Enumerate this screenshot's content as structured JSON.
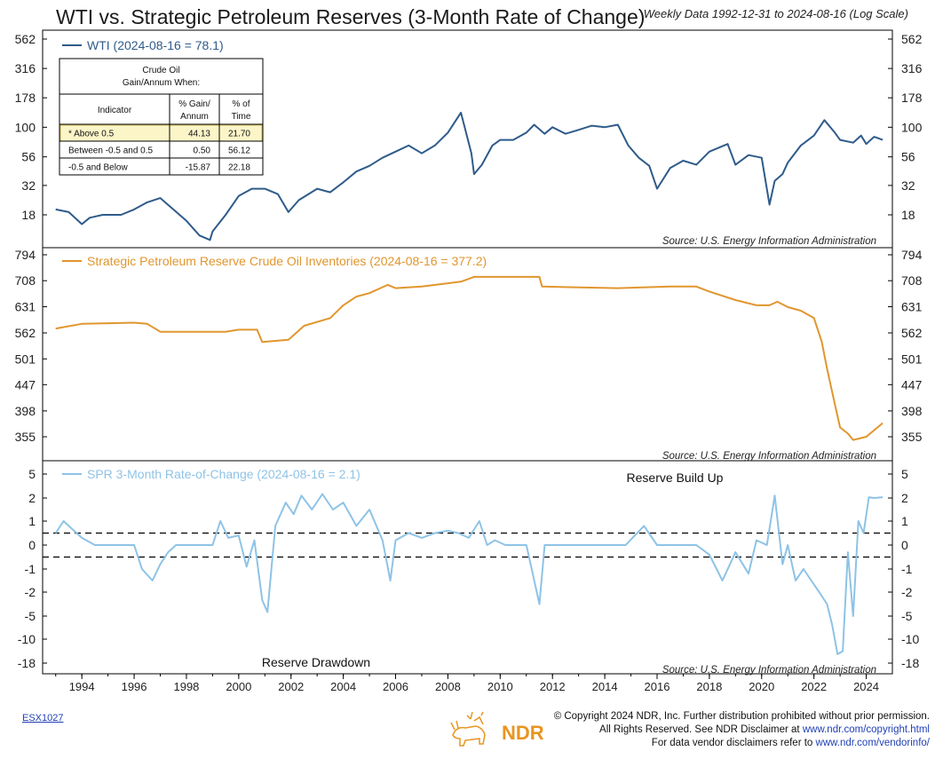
{
  "header": {
    "title": "WTI vs. Strategic Petroleum Reserves (3-Month Rate of Change)",
    "subtitle": "Weekly Data 1992-12-31 to 2024-08-16 (Log Scale)"
  },
  "footer": {
    "code": "ESX1027",
    "logo_text": "NDR",
    "copyright_line1": "© Copyright 2024 NDR, Inc. Further distribution prohibited without prior permission.",
    "copyright_line2_pre": "All Rights Reserved. See NDR Disclaimer at ",
    "copyright_line2_link": "www.ndr.com/copyright.html",
    "copyright_line3_pre": "For data vendor disclaimers refer to ",
    "copyright_line3_link": "www.ndr.com/vendorinfo/"
  },
  "colors": {
    "wti": "#2f5b8a",
    "spr": "#e0962e",
    "roc": "#8ec3e6",
    "grid": "#000000"
  },
  "chart_data": [
    {
      "type": "line",
      "scale": "log",
      "legend": "WTI (2024-08-16 = 78.1)",
      "source": "Source:  U.S. Energy Information Administration",
      "ticks": [
        "562",
        "316",
        "178",
        "100",
        "56",
        "32",
        "18"
      ],
      "tick_values": [
        562,
        316,
        178,
        100,
        56,
        32,
        18
      ],
      "ylim": [
        12,
        600
      ],
      "table": {
        "title_line1": "Crude Oil",
        "title_line2": "Gain/Annum When:",
        "col_indicator": "Indicator",
        "col_gain_1": "% Gain/",
        "col_gain_2": "Annum",
        "col_time_1": "% of",
        "col_time_2": "Time",
        "rows": [
          {
            "indicator": "* Above 0.5",
            "gain": "44.13",
            "time": "21.70",
            "highlight": true
          },
          {
            "indicator": "Between -0.5 and 0.5",
            "gain": "0.50",
            "time": "56.12",
            "highlight": false
          },
          {
            "indicator": "-0.5 and Below",
            "gain": "-15.87",
            "time": "22.18",
            "highlight": false
          }
        ]
      },
      "x": [
        1993.0,
        1993.5,
        1994.0,
        1994.3,
        1994.8,
        1995.5,
        1996.0,
        1996.5,
        1997.0,
        1997.5,
        1998.0,
        1998.5,
        1998.9,
        1999.0,
        1999.5,
        2000.0,
        2000.5,
        2001.0,
        2001.5,
        2001.9,
        2002.3,
        2003.0,
        2003.5,
        2004.0,
        2004.5,
        2005.0,
        2005.5,
        2006.0,
        2006.5,
        2007.0,
        2007.5,
        2008.0,
        2008.5,
        2008.9,
        2009.0,
        2009.3,
        2009.7,
        2010.0,
        2010.5,
        2011.0,
        2011.3,
        2011.7,
        2012.0,
        2012.5,
        2013.0,
        2013.5,
        2014.0,
        2014.5,
        2014.9,
        2015.3,
        2015.7,
        2016.0,
        2016.5,
        2017.0,
        2017.5,
        2018.0,
        2018.7,
        2019.0,
        2019.5,
        2020.0,
        2020.3,
        2020.5,
        2020.8,
        2021.0,
        2021.5,
        2022.0,
        2022.4,
        2022.8,
        2023.0,
        2023.5,
        2023.8,
        2024.0,
        2024.3,
        2024.63
      ],
      "values": [
        20,
        19,
        15,
        17,
        18,
        18,
        20,
        23,
        25,
        20,
        16,
        12,
        11,
        13,
        18,
        26,
        30,
        30,
        27,
        19,
        24,
        30,
        28,
        34,
        42,
        47,
        55,
        62,
        70,
        60,
        70,
        90,
        133,
        60,
        40,
        48,
        70,
        78,
        78,
        90,
        105,
        88,
        100,
        88,
        95,
        103,
        100,
        105,
        70,
        55,
        47,
        30,
        45,
        52,
        48,
        62,
        72,
        48,
        58,
        55,
        22,
        35,
        40,
        50,
        70,
        85,
        115,
        90,
        78,
        74,
        85,
        72,
        83,
        78.1
      ]
    },
    {
      "type": "line",
      "scale": "log",
      "legend": "Strategic Petroleum Reserve Crude Oil Inventories (2024-08-16 = 377.2)",
      "source": "Source:  U.S. Energy Information Administration",
      "ticks": [
        "794",
        "708",
        "631",
        "562",
        "501",
        "447",
        "398",
        "355"
      ],
      "tick_values": [
        794,
        708,
        631,
        562,
        501,
        447,
        398,
        355
      ],
      "ylim": [
        320,
        820
      ],
      "x": [
        1993.0,
        1994.0,
        1996.0,
        1996.5,
        1997.0,
        1998.0,
        1999.5,
        2000.0,
        2000.7,
        2000.9,
        2001.9,
        2002.5,
        2003.5,
        2004.0,
        2004.5,
        2005.0,
        2005.7,
        2006.0,
        2007.0,
        2008.0,
        2008.5,
        2009.0,
        2011.5,
        2011.6,
        2014.5,
        2016.5,
        2017.5,
        2018.0,
        2019.0,
        2019.8,
        2020.3,
        2020.6,
        2021.0,
        2021.5,
        2022.0,
        2022.3,
        2022.5,
        2022.8,
        2023.0,
        2023.3,
        2023.5,
        2024.0,
        2024.63
      ],
      "values": [
        573,
        585,
        588,
        585,
        565,
        565,
        565,
        570,
        570,
        540,
        545,
        580,
        600,
        635,
        660,
        670,
        695,
        685,
        690,
        700,
        705,
        720,
        720,
        690,
        685,
        690,
        690,
        675,
        650,
        635,
        635,
        645,
        630,
        620,
        600,
        540,
        480,
        410,
        370,
        360,
        350,
        355,
        377.2
      ]
    },
    {
      "type": "line",
      "scale": "symlog",
      "legend": "SPR 3-Month Rate-of-Change (2024-08-16 = 2.1)",
      "source": "Source:  U.S. Energy Information Administration",
      "annotation_top": "Reserve Build Up",
      "annotation_bottom": "Reserve Drawdown",
      "ticks": [
        "5",
        "2",
        "1",
        "0",
        "-1",
        "-2",
        "-5",
        "-10",
        "-18"
      ],
      "tick_values": [
        5,
        2,
        1,
        0,
        -1,
        -2,
        -5,
        -10,
        -18
      ],
      "thresholds": [
        0.5,
        -0.5
      ],
      "x": [
        1993.0,
        1993.3,
        1993.6,
        1994.0,
        1994.5,
        1995.0,
        1996.0,
        1996.3,
        1996.7,
        1997.0,
        1997.3,
        1997.6,
        1998.0,
        1999.0,
        1999.3,
        1999.6,
        2000.0,
        2000.3,
        2000.6,
        2000.9,
        2001.1,
        2001.4,
        2001.8,
        2002.1,
        2002.4,
        2002.8,
        2003.2,
        2003.6,
        2004.0,
        2004.5,
        2005.0,
        2005.5,
        2005.8,
        2006.0,
        2006.5,
        2007.0,
        2007.5,
        2008.0,
        2008.4,
        2008.8,
        2009.2,
        2009.5,
        2009.8,
        2010.2,
        2011.0,
        2011.5,
        2011.7,
        2012.0,
        2013.0,
        2014.0,
        2014.8,
        2015.5,
        2016.0,
        2016.5,
        2017.0,
        2017.5,
        2018.0,
        2018.5,
        2019.0,
        2019.5,
        2019.8,
        2020.2,
        2020.5,
        2020.8,
        2021.0,
        2021.3,
        2021.6,
        2021.9,
        2022.2,
        2022.5,
        2022.7,
        2022.9,
        2023.1,
        2023.3,
        2023.5,
        2023.7,
        2023.9,
        2024.1,
        2024.3,
        2024.63
      ],
      "values": [
        0.5,
        1.0,
        0.7,
        0.3,
        0.0,
        0.0,
        0.0,
        -1.0,
        -1.5,
        -0.8,
        -0.3,
        0.0,
        0.0,
        0.0,
        1.0,
        0.3,
        0.4,
        -0.9,
        0.2,
        -3.0,
        -4.5,
        0.8,
        1.8,
        1.3,
        2.3,
        1.5,
        2.5,
        1.5,
        1.8,
        0.8,
        1.5,
        0.2,
        -1.5,
        0.2,
        0.5,
        0.3,
        0.5,
        0.6,
        0.5,
        0.3,
        1.0,
        0.0,
        0.2,
        0.0,
        0.0,
        -3.5,
        0.0,
        0.0,
        0.0,
        0.0,
        0.0,
        0.8,
        0.0,
        0.0,
        0.0,
        0.0,
        -0.4,
        -1.5,
        -0.3,
        -1.2,
        0.2,
        0.0,
        2.3,
        -0.8,
        0.0,
        -1.5,
        -1.0,
        -1.5,
        -2.0,
        -3.5,
        -7.0,
        -15.0,
        -14.0,
        -0.3,
        -5.0,
        1.0,
        0.5,
        2.1,
        2.0,
        2.1
      ]
    }
  ],
  "x_axis": {
    "labels": [
      "1994",
      "1996",
      "1998",
      "2000",
      "2002",
      "2004",
      "2006",
      "2008",
      "2010",
      "2012",
      "2014",
      "2016",
      "2018",
      "2020",
      "2022",
      "2024"
    ],
    "years": [
      1994,
      1996,
      1998,
      2000,
      2002,
      2004,
      2006,
      2008,
      2010,
      2012,
      2014,
      2016,
      2018,
      2020,
      2022,
      2024
    ],
    "xlim": [
      1992.5,
      2025.0
    ]
  }
}
